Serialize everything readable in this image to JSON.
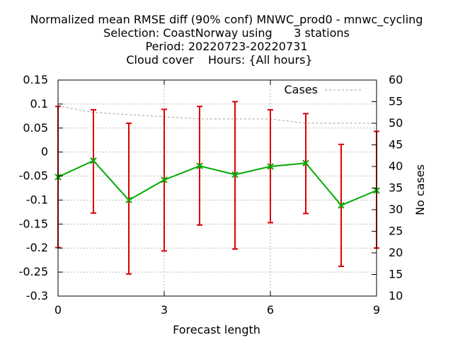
{
  "chart_data": {
    "type": "line",
    "title_lines": [
      "Normalized mean RMSE diff (90% conf) MNWC_prod0 - mnwc_cycling",
      "Selection: CoastNorway using      3 stations",
      "Period: 20220723-20220731",
      "Cloud cover    Hours: {All hours}"
    ],
    "xlabel": "Forecast length",
    "ylabel": "",
    "y2label": "No cases",
    "xlim": [
      0,
      9
    ],
    "ylim": [
      -0.3,
      0.15
    ],
    "y2lim": [
      10,
      60
    ],
    "x_ticks": [
      0,
      3,
      6,
      9
    ],
    "y_ticks": [
      0.15,
      0.1,
      0.05,
      0,
      -0.05,
      -0.1,
      -0.15,
      -0.2,
      -0.25,
      -0.3
    ],
    "y_tick_labels": [
      "0.15",
      "0.1",
      "0.05",
      "0",
      "-0.05",
      "-0.1",
      "-0.15",
      "-0.2",
      "-0.25",
      "-0.3"
    ],
    "y2_ticks": [
      60,
      55,
      50,
      45,
      40,
      35,
      30,
      25,
      20,
      15,
      10
    ],
    "grid": true,
    "legend_position": "top-right",
    "series": [
      {
        "style": "line-with-errorbars",
        "color": "#00aa00",
        "marker_color": "#00aa00",
        "errorbar_color": "#dd0000",
        "x": [
          0,
          1,
          2,
          3,
          4,
          5,
          6,
          7,
          8,
          9
        ],
        "y": [
          -0.052,
          -0.018,
          -0.1,
          -0.058,
          -0.029,
          -0.047,
          -0.03,
          -0.023,
          -0.111,
          -0.08
        ],
        "y_low": [
          -0.199,
          -0.127,
          -0.254,
          -0.206,
          -0.152,
          -0.202,
          -0.147,
          -0.128,
          -0.238,
          -0.2
        ],
        "y_high": [
          0.095,
          0.088,
          0.06,
          0.089,
          0.095,
          0.105,
          0.088,
          0.08,
          0.016,
          0.043
        ]
      },
      {
        "name": "Cases",
        "axis": "right",
        "style": "dashed",
        "color": "#a0a0a0",
        "x": [
          0,
          1,
          2,
          3,
          4,
          5,
          6,
          7,
          8,
          9
        ],
        "y": [
          54,
          52.5,
          52,
          51.5,
          51,
          51,
          51,
          50,
          50,
          50
        ]
      }
    ]
  }
}
